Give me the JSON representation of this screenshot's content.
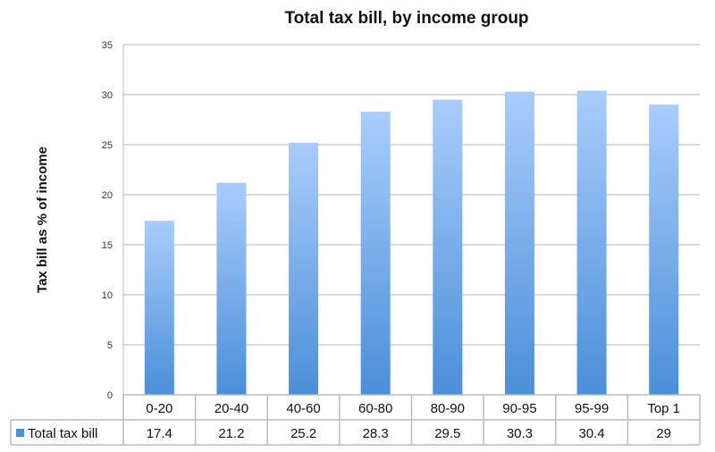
{
  "chart_data": {
    "type": "bar",
    "title": "Total tax bill, by income group",
    "xlabel": "",
    "ylabel": "Tax bill as % of income",
    "ylim": [
      0,
      35
    ],
    "yticks": [
      0,
      5,
      10,
      15,
      20,
      25,
      30,
      35
    ],
    "grid": true,
    "categories": [
      "0-20",
      "20-40",
      "40-60",
      "60-80",
      "80-90",
      "90-95",
      "95-99",
      "Top 1"
    ],
    "series": [
      {
        "name": "Total tax bill",
        "values": [
          17.4,
          21.2,
          25.2,
          28.3,
          29.5,
          30.3,
          30.4,
          29
        ],
        "labels": [
          "17.4",
          "21.2",
          "25.2",
          "28.3",
          "29.5",
          "30.3",
          "30.4",
          "29"
        ],
        "color_top": "#a9cdfb",
        "color_bottom": "#4a8fd8"
      }
    ],
    "legend": "data-table"
  }
}
